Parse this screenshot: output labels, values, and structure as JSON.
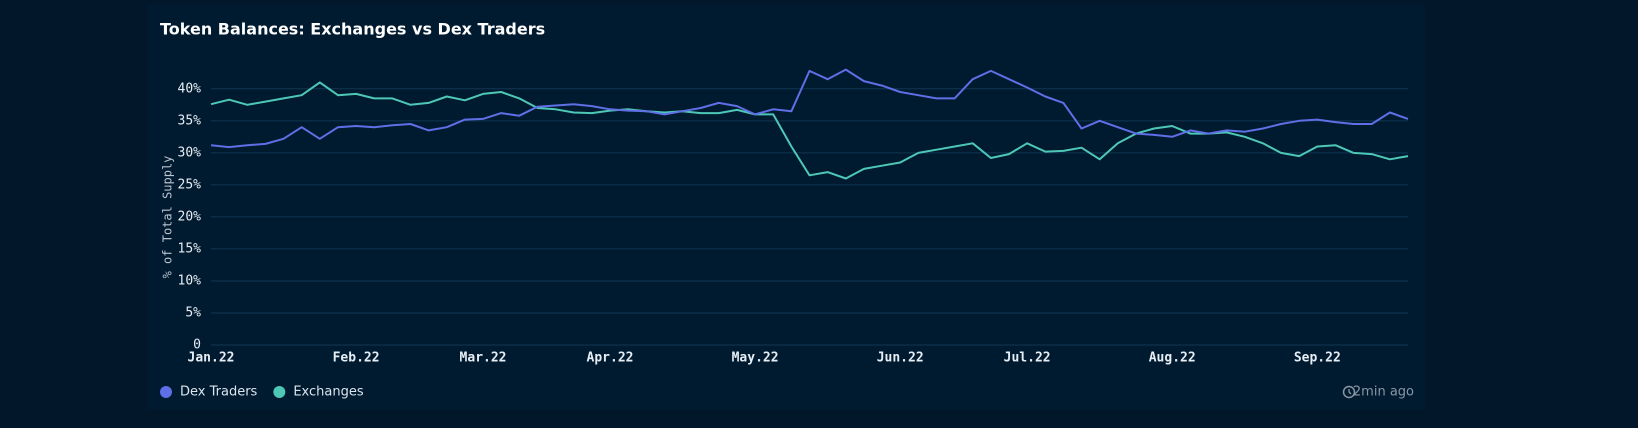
{
  "chart_data": {
    "type": "line",
    "title": "Token Balances: Exchanges vs Dex Traders",
    "y_label": "% of Total Supply",
    "categories": [
      "Jan.22",
      null,
      null,
      null,
      null,
      null,
      null,
      null,
      "Feb.22",
      null,
      null,
      null,
      null,
      null,
      null,
      "Mar.22",
      null,
      null,
      null,
      null,
      null,
      null,
      "Apr.22",
      null,
      null,
      null,
      null,
      null,
      null,
      null,
      "May.22",
      null,
      null,
      null,
      null,
      null,
      null,
      null,
      "Jun.22",
      null,
      null,
      null,
      null,
      null,
      null,
      "Jul.22",
      null,
      null,
      null,
      null,
      null,
      null,
      null,
      "Aug.22",
      null,
      null,
      null,
      null,
      null,
      null,
      null,
      "Sep.22",
      null,
      null,
      null,
      null,
      null
    ],
    "series": [
      {
        "name": "Dex Traders",
        "color": "#5f6fe6",
        "values": [
          31.2,
          30.9,
          31.2,
          31.4,
          32.2,
          34.0,
          32.2,
          34.0,
          34.2,
          34.0,
          34.3,
          34.5,
          33.5,
          34.0,
          35.2,
          35.3,
          36.2,
          35.8,
          37.2,
          37.4,
          37.6,
          37.3,
          36.8,
          36.6,
          36.5,
          36.0,
          36.5,
          37.0,
          37.8,
          37.3,
          36.0,
          36.8,
          36.5,
          42.8,
          41.5,
          43.0,
          41.2,
          40.5,
          39.5,
          39.0,
          38.5,
          38.5,
          41.5,
          42.8,
          41.5,
          40.2,
          38.8,
          37.8,
          33.8,
          35.0,
          34.0,
          33.0,
          32.8,
          32.5,
          33.5,
          33.0,
          33.5,
          33.3,
          33.8,
          34.5,
          35.0,
          35.2,
          34.8,
          34.5,
          34.5,
          36.3,
          35.3
        ]
      },
      {
        "name": "Exchanges",
        "color": "#4ec8b6",
        "values": [
          37.6,
          38.3,
          37.5,
          38.0,
          38.5,
          39.0,
          41.0,
          39.0,
          39.2,
          38.5,
          38.5,
          37.5,
          37.8,
          38.8,
          38.2,
          39.2,
          39.5,
          38.5,
          37.0,
          36.8,
          36.3,
          36.2,
          36.6,
          36.8,
          36.5,
          36.3,
          36.5,
          36.2,
          36.2,
          36.7,
          36.0,
          36.0,
          31.0,
          26.5,
          27.0,
          26.0,
          27.5,
          28.0,
          28.5,
          30.0,
          30.5,
          31.0,
          31.5,
          29.2,
          29.8,
          31.5,
          30.2,
          30.3,
          30.8,
          29.0,
          31.5,
          33.0,
          33.8,
          34.2,
          33.0,
          33.0,
          33.2,
          32.5,
          31.5,
          30.0,
          29.5,
          31.0,
          31.2,
          30.0,
          29.8,
          29.0,
          29.5
        ]
      }
    ],
    "ylim": [
      0,
      42
    ],
    "yticks": [
      0,
      {
        "value": 5,
        "label": "5%"
      },
      {
        "value": 10,
        "label": "10%"
      },
      {
        "value": 15,
        "label": "15%"
      },
      {
        "value": 20,
        "label": "20%"
      },
      {
        "value": 25,
        "label": "25%"
      },
      {
        "value": 30,
        "label": "30%"
      },
      {
        "value": 35,
        "label": "35%"
      },
      {
        "value": 40,
        "label": "40%"
      }
    ],
    "grid": true
  },
  "status": "2min ago"
}
